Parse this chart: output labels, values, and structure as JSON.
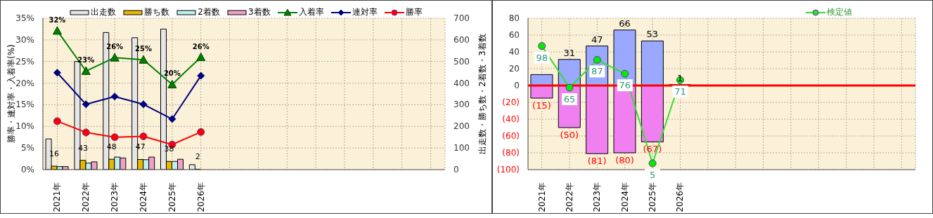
{
  "chart_data": [
    {
      "type": "bar",
      "ylabel": "勝率・連対率・入着率(%)",
      "y2label": "出走数・勝ち数・2着数・3着数",
      "categories": [
        "2021年",
        "2022年",
        "2023年",
        "2024年",
        "2025年",
        "2026年",
        null,
        null,
        null,
        null,
        null,
        null,
        null,
        null
      ],
      "series": [
        {
          "name": "出走数",
          "axis": "y2",
          "color": "#e6e6e6",
          "values": [
            142,
            500,
            634,
            610,
            650,
            23,
            null,
            null,
            null,
            null,
            null,
            null,
            null,
            null
          ]
        },
        {
          "name": "勝ち数",
          "axis": "y2",
          "color": "#e8b800",
          "values": [
            16,
            43,
            48,
            47,
            38,
            2,
            null,
            null,
            null,
            null,
            null,
            null,
            null,
            null
          ],
          "value_labels": [
            "16",
            "43",
            "48",
            "47",
            "38",
            "2",
            null,
            null,
            null,
            null,
            null,
            null,
            null,
            null
          ]
        },
        {
          "name": "2着数",
          "axis": "y2",
          "color": "#bff0f0",
          "values": [
            14,
            30,
            58,
            46,
            38,
            0,
            null,
            null,
            null,
            null,
            null,
            null,
            null,
            null
          ]
        },
        {
          "name": "3着数",
          "axis": "y2",
          "color": "#f0a0c8",
          "values": [
            14,
            36,
            54,
            58,
            48,
            0,
            null,
            null,
            null,
            null,
            null,
            null,
            null,
            null
          ]
        },
        {
          "name": "入着率",
          "type": "line",
          "marker": "triangle",
          "color": "#008000",
          "values": [
            32.1,
            22.8,
            25.9,
            25.4,
            19.7,
            26.0,
            null,
            null,
            null,
            null,
            null,
            null,
            null,
            null
          ],
          "value_labels": [
            "32%",
            "23%",
            "26%",
            "25%",
            "20%",
            "26%",
            null,
            null,
            null,
            null,
            null,
            null,
            null,
            null
          ]
        },
        {
          "name": "連対率",
          "type": "line",
          "marker": "diamond",
          "color": "#000080",
          "values": [
            22.4,
            15.1,
            16.9,
            15.1,
            11.7,
            21.7,
            null,
            null,
            null,
            null,
            null,
            null,
            null,
            null
          ]
        },
        {
          "name": "勝率",
          "type": "line",
          "marker": "circle",
          "color": "#ff0000",
          "values": [
            11.2,
            8.6,
            7.5,
            7.7,
            5.8,
            8.7,
            null,
            null,
            null,
            null,
            null,
            null,
            null,
            null
          ]
        }
      ],
      "ylim": [
        0,
        35
      ],
      "yticks": [
        {
          "value": 0,
          "label": "0%"
        },
        {
          "value": 5,
          "label": "5%"
        },
        {
          "value": 10,
          "label": "10%"
        },
        {
          "value": 15,
          "label": "15%"
        },
        {
          "value": 20,
          "label": "20%"
        },
        {
          "value": 25,
          "label": "25%"
        },
        {
          "value": 30,
          "label": "30%"
        },
        {
          "value": 35,
          "label": "35%"
        }
      ],
      "y2lim": [
        0,
        700
      ],
      "y2ticks": [
        0,
        100,
        200,
        300,
        400,
        500,
        600,
        700
      ],
      "grid": true,
      "legend": "top"
    },
    {
      "type": "bar",
      "stacked": true,
      "categories": [
        "2021年",
        "2022年",
        "2023年",
        "2024年",
        "2025年",
        "2026年",
        null,
        null,
        null,
        null,
        null,
        null,
        null,
        null
      ],
      "series": [
        {
          "color": "#9aa8ff",
          "values": [
            13,
            31,
            47,
            66,
            53,
            1,
            null,
            null,
            null,
            null,
            null,
            null,
            null,
            null
          ],
          "value_labels": [
            null,
            "31",
            "47",
            "66",
            "53",
            "1",
            null,
            null,
            null,
            null,
            null,
            null,
            null,
            null
          ]
        },
        {
          "color": "#f080f0",
          "values": [
            -15,
            -50,
            -81,
            -80,
            -67,
            null,
            null,
            null,
            null,
            null,
            null,
            null,
            null,
            null
          ],
          "value_labels": [
            "(15)",
            "(50)",
            "(81)",
            "(80)",
            "(67)",
            null,
            null,
            null,
            null,
            null,
            null,
            null,
            null,
            null
          ]
        },
        {
          "name": "検定値",
          "type": "line",
          "axis": "y2",
          "marker": "circle",
          "color": "#33dd33",
          "values": [
            98,
            65,
            87,
            76,
            5,
            71,
            null,
            null,
            null,
            null,
            null,
            null,
            null,
            null
          ],
          "value_labels": [
            "98",
            "65",
            "87",
            "76",
            "5",
            "71",
            null,
            null,
            null,
            null,
            null,
            null,
            null,
            null
          ]
        }
      ],
      "ylim": [
        -100,
        80
      ],
      "yticks": [
        {
          "value": -100,
          "label": "(100)"
        },
        {
          "value": -80,
          "label": "(80)"
        },
        {
          "value": -60,
          "label": "(60)"
        },
        {
          "value": -40,
          "label": "(40)"
        },
        {
          "value": -20,
          "label": "(20)"
        },
        0,
        20,
        40,
        60,
        80
      ],
      "y2lim": [
        0,
        120
      ],
      "ref_lines": [
        {
          "axis": "y",
          "value": 0,
          "color": "#ff0000"
        }
      ],
      "grid": true,
      "legend": "top right"
    }
  ]
}
